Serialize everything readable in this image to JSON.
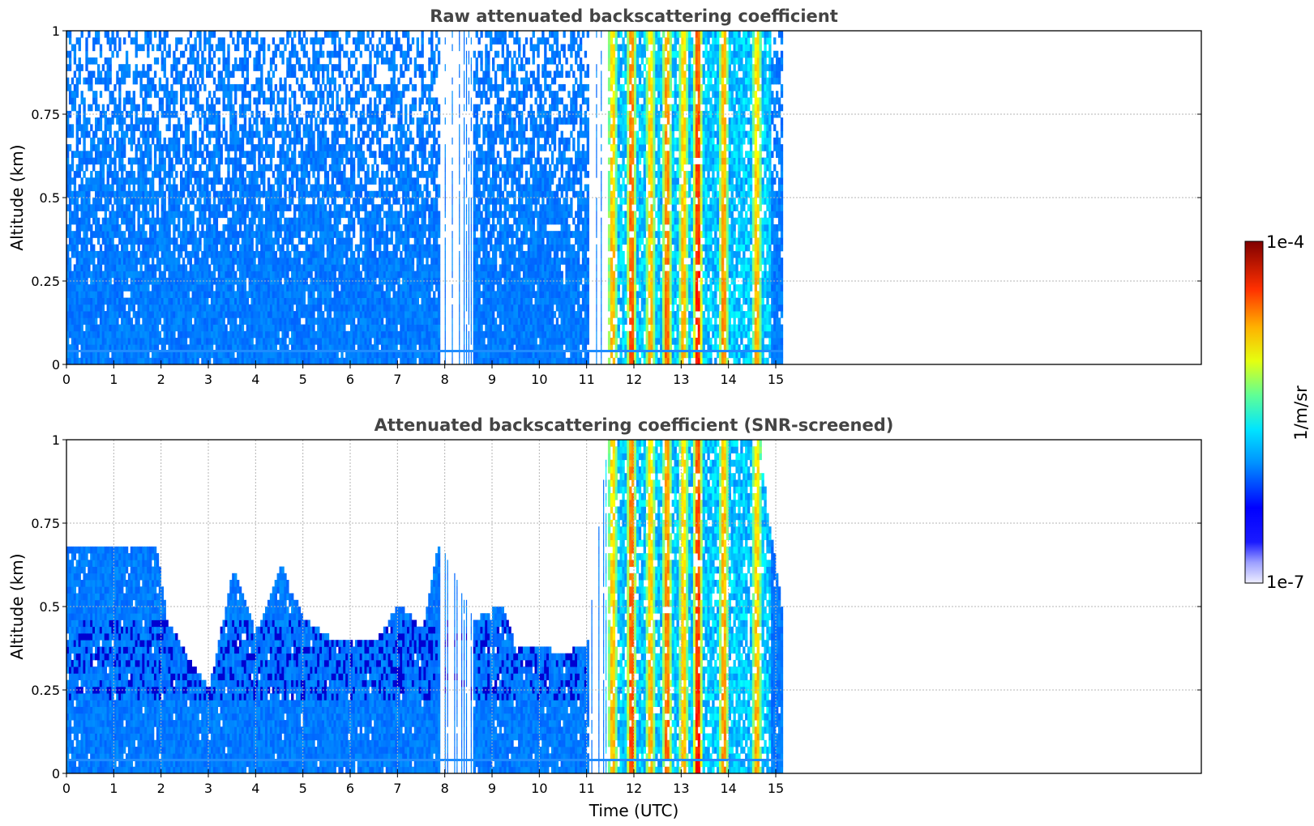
{
  "chart_data": [
    {
      "type": "heatmap",
      "title": "Raw attenuated backscattering coefficient",
      "xlabel": "",
      "ylabel": "Altitude (km)",
      "xlim": [
        0,
        24
      ],
      "ylim": [
        0,
        1
      ],
      "x_ticks": [
        0,
        1,
        2,
        3,
        4,
        5,
        6,
        7,
        8,
        9,
        10,
        11,
        12,
        13,
        14,
        15
      ],
      "x_tick_labels": [
        "0",
        "1",
        "2",
        "3",
        "4",
        "5",
        "6",
        "7",
        "8",
        "9",
        "10",
        "11",
        "12",
        "13",
        "14",
        "15"
      ],
      "y_ticks": [
        0,
        0.25,
        0.5,
        0.75,
        1
      ],
      "y_tick_labels": [
        "0",
        "0.25",
        "0.5",
        "0.75",
        "1"
      ],
      "grid": true,
      "data_extent_time": [
        0,
        15.15
      ],
      "colorscale": "log",
      "clim": [
        1e-07,
        0.0001
      ],
      "data_gaps": [
        [
          7.85,
          8.55
        ],
        [
          11.05,
          11.45
        ]
      ],
      "bright_columns": [
        {
          "time": 11.55,
          "level": 0.5
        },
        {
          "time": 11.95,
          "level": 0.65
        },
        {
          "time": 12.35,
          "level": 0.5
        },
        {
          "time": 12.7,
          "level": 0.6
        },
        {
          "time": 13.05,
          "level": 0.5
        },
        {
          "time": 13.35,
          "level": 0.72
        },
        {
          "time": 13.9,
          "level": 0.55
        },
        {
          "time": 14.6,
          "level": 0.5
        }
      ],
      "near_surface_layer_altitude": 0.04
    },
    {
      "type": "heatmap",
      "title": "Attenuated backscattering coefficient (SNR-screened)",
      "xlabel": "Time (UTC)",
      "ylabel": "Altitude (km)",
      "xlim": [
        0,
        24
      ],
      "ylim": [
        0,
        1
      ],
      "x_ticks": [
        0,
        1,
        2,
        3,
        4,
        5,
        6,
        7,
        8,
        9,
        10,
        11,
        12,
        13,
        14,
        15
      ],
      "x_tick_labels": [
        "0",
        "1",
        "2",
        "3",
        "4",
        "5",
        "6",
        "7",
        "8",
        "9",
        "10",
        "11",
        "12",
        "13",
        "14",
        "15"
      ],
      "y_ticks": [
        0,
        0.25,
        0.5,
        0.75,
        1
      ],
      "y_tick_labels": [
        "0",
        "0.25",
        "0.5",
        "0.75",
        "1"
      ],
      "grid": true,
      "data_extent_time": [
        0,
        15.15
      ],
      "colorscale": "log",
      "clim": [
        1e-07,
        0.0001
      ],
      "screened_top_altitude": {
        "time": [
          0,
          1,
          1.9,
          2.1,
          2.7,
          3.0,
          3.5,
          4.0,
          4.5,
          5.0,
          5.5,
          6.0,
          6.5,
          7.0,
          7.5,
          7.85,
          8.6,
          9.2,
          9.5,
          10.0,
          10.5,
          11.0,
          11.45,
          12.0,
          13.0,
          14.0,
          14.6,
          15.15
        ],
        "altitude": [
          0.68,
          0.67,
          0.66,
          0.45,
          0.3,
          0.25,
          0.6,
          0.42,
          0.62,
          0.45,
          0.4,
          0.4,
          0.38,
          0.5,
          0.42,
          0.7,
          0.45,
          0.5,
          0.36,
          0.37,
          0.35,
          0.38,
          1.0,
          1.0,
          1.0,
          1.0,
          1.0,
          0.45
        ]
      },
      "data_gaps": [
        [
          7.85,
          8.55
        ],
        [
          11.05,
          11.45
        ]
      ],
      "near_surface_layer_altitude": 0.04
    }
  ],
  "colorbar": {
    "label": "1/m/sr",
    "max_label": "1e-4",
    "min_label": "1e-7",
    "scale": "log",
    "colormap": "jet"
  }
}
